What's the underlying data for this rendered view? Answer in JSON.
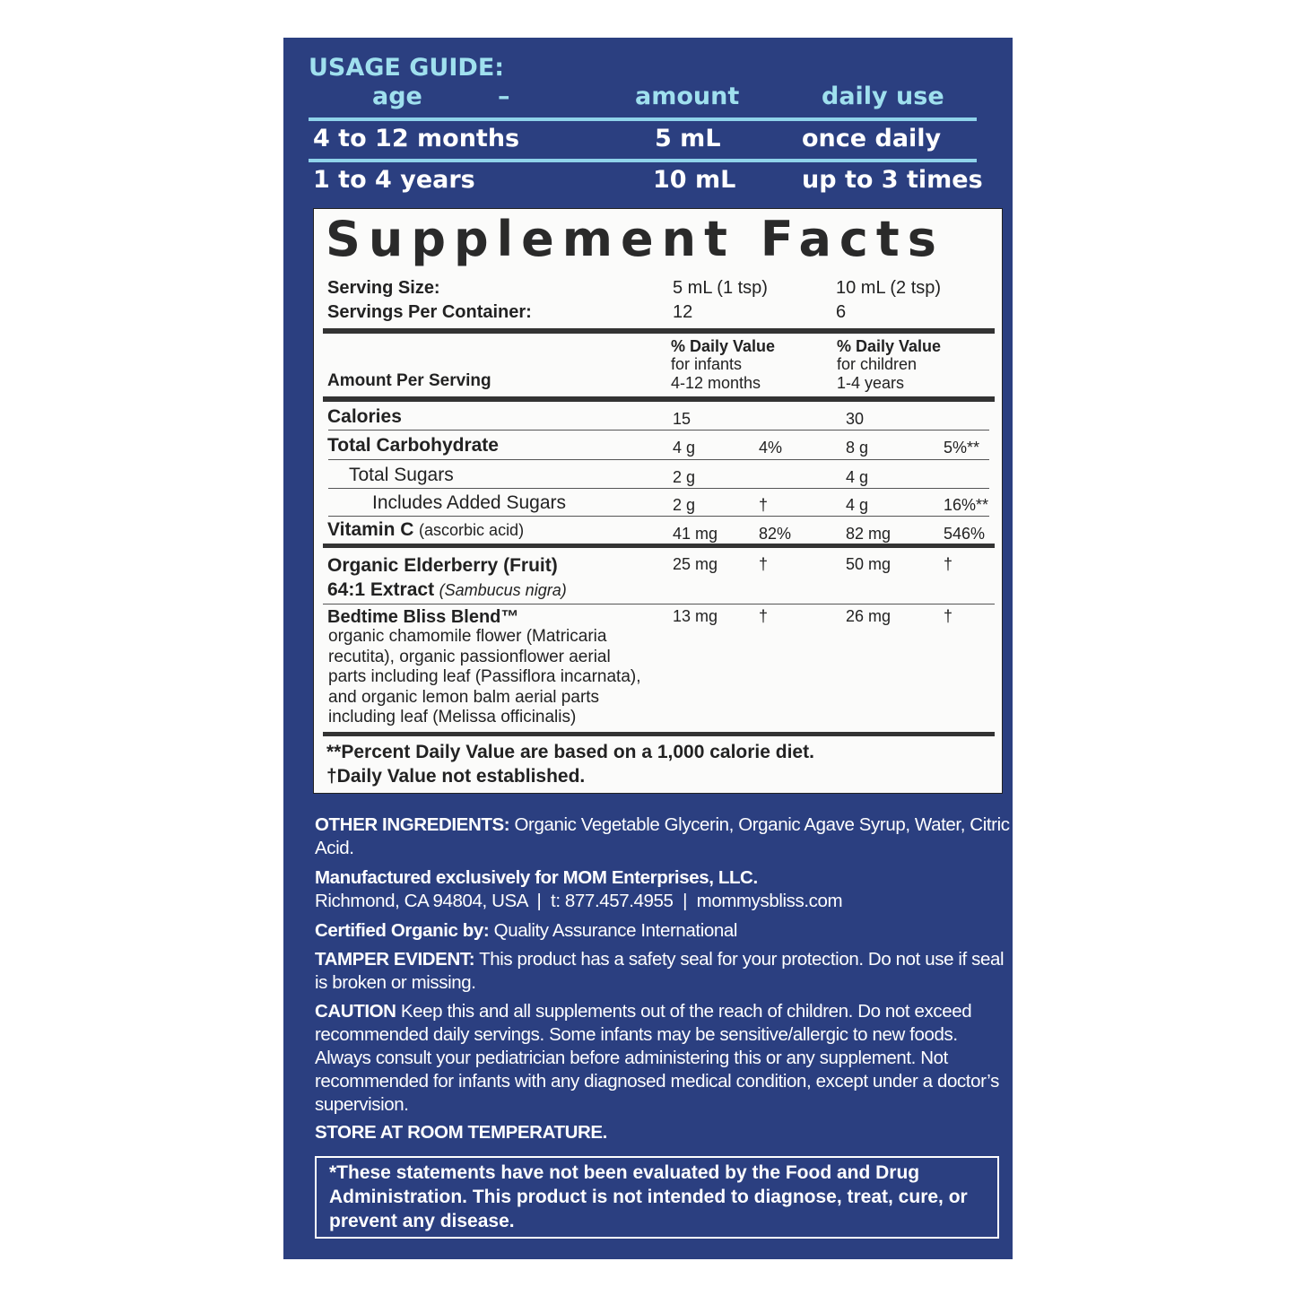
{
  "usage_guide": {
    "title": "USAGE GUIDE:",
    "headers": [
      "age",
      "–",
      "amount",
      "daily use"
    ],
    "rows": [
      {
        "age": "4 to 12 months",
        "amount": "5 mL",
        "daily_use": "once daily"
      },
      {
        "age": "1 to 4 years",
        "amount": "10 mL",
        "daily_use": "up to 3 times"
      }
    ]
  },
  "facts": {
    "title": "Supplement Facts",
    "serving_size_label": "Serving Size:",
    "serving_size": [
      "5 mL (1 tsp)",
      "10 mL (2 tsp)"
    ],
    "servings_label": "Servings Per Container:",
    "servings": [
      "12",
      "6"
    ],
    "amount_per_serving": "Amount Per Serving",
    "dv_headers": [
      {
        "title": "% Daily Value",
        "line1": "for infants",
        "line2": "4-12 months"
      },
      {
        "title": "% Daily Value",
        "line1": "for children",
        "line2": "1-4 years"
      }
    ],
    "rows": [
      {
        "name": "Calories",
        "a1": "15",
        "d1": "",
        "a2": "30",
        "d2": ""
      },
      {
        "name": "Total Carbohydrate",
        "a1": "4 g",
        "d1": "4%",
        "a2": "8 g",
        "d2": "5%**"
      },
      {
        "name": "Total Sugars",
        "a1": "2 g",
        "d1": "",
        "a2": "4 g",
        "d2": ""
      },
      {
        "name": "Includes Added Sugars",
        "a1": "2 g",
        "d1": "†",
        "a2": "4 g",
        "d2": "16%**"
      },
      {
        "name": "Vitamin C",
        "note": "(ascorbic acid)",
        "a1": "41 mg",
        "d1": "82%",
        "a2": "82 mg",
        "d2": "546%"
      },
      {
        "name": "Organic Elderberry (Fruit)",
        "name2": "64:1 Extract",
        "note": "(Sambucus nigra)",
        "a1": "25 mg",
        "d1": "†",
        "a2": "50 mg",
        "d2": "†"
      },
      {
        "name": "Bedtime Bliss Blend™",
        "a1": "13 mg",
        "d1": "†",
        "a2": "26 mg",
        "d2": "†",
        "desc": "organic chamomile flower (Matricaria recutita), organic passionflower aerial parts including leaf (Passiflora incarnata), and organic lemon balm aerial parts including leaf (Melissa officinalis)"
      }
    ],
    "footnote1": "**Percent Daily Value are based on a 1,000 calorie diet.",
    "footnote2": "†Daily Value not established."
  },
  "info": {
    "other_label": "OTHER INGREDIENTS:",
    "other_text": "Organic Vegetable Glycerin, Organic Agave Syrup, Water, Citric Acid.",
    "manufacturer": "Manufactured exclusively for MOM Enterprises, LLC.",
    "address": "Richmond, CA 94804, USA  |  t: 877.457.4955  |  mommysbliss.com",
    "certified_label": "Certified Organic by:",
    "certified_text": "Quality Assurance International",
    "tamper_label": "TAMPER EVIDENT:",
    "tamper_text": "This product has a safety seal for your protection. Do not use if seal is broken or missing.",
    "caution_label": "CAUTION",
    "caution_text": "Keep this and all supplements out of the reach of children. Do not exceed recommended daily servings. Some infants may be sensitive/allergic to new foods. Always consult your pediatrician before administering this or any supplement. Not recommended for infants with any diagnosed medical condition, except under a doctor’s supervision.",
    "store": "STORE AT ROOM TEMPERATURE.",
    "disclaimer": "*These statements have not been evaluated by the Food and Drug Administration. This product is not intended to diagnose, treat, cure, or prevent any disease."
  },
  "colors": {
    "panel": "#2b3f80",
    "accent": "#9fe0ee",
    "facts_bg": "#fbfbfa"
  }
}
